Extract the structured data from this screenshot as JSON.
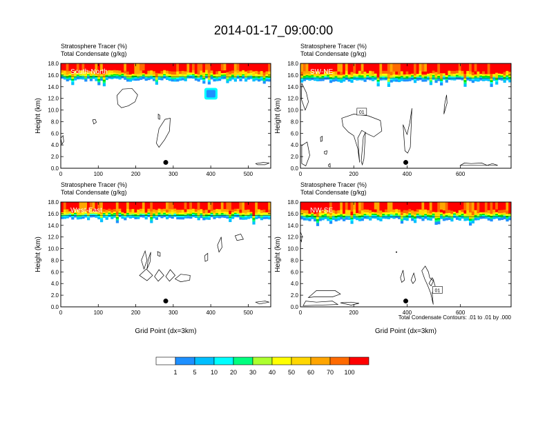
{
  "figure": {
    "title": "2014-01-17_09:00:00",
    "footnote": "Total Condensate Contours: .01 to .01 by .000"
  },
  "colorbar": {
    "labels": [
      "1",
      "5",
      "10",
      "20",
      "30",
      "40",
      "50",
      "60",
      "70",
      "100"
    ],
    "colors": [
      "#ffffff",
      "#1e90ff",
      "#00bfff",
      "#00ffff",
      "#00ff7f",
      "#00e000",
      "#adff2f",
      "#ffff00",
      "#ffd700",
      "#ffa500",
      "#ff6a00",
      "#ff0000"
    ]
  },
  "chart_data": [
    {
      "type": "heatmap",
      "panel_label": "South-North",
      "title_line1": "Stratosphere Tracer   (%)",
      "title_line2": "Total Condensate   (g/kg)",
      "ylabel": "Height (km)",
      "xlabel": "",
      "xlim": [
        0,
        560
      ],
      "ylim": [
        0,
        18
      ],
      "x_ticks": [
        0,
        100,
        200,
        300,
        400,
        500
      ],
      "y_ticks": [
        "0.0",
        "2.0",
        "4.0",
        "6.0",
        "8.0",
        "10.0",
        "12.0",
        "14.0",
        "16.0",
        "18.0"
      ],
      "tracer_base_km": 15.2,
      "marker": {
        "x": 280,
        "y": 1.0
      },
      "contours": [
        [
          [
            150,
            12.5
          ],
          [
            165,
            13.6
          ],
          [
            190,
            13.7
          ],
          [
            205,
            12.6
          ],
          [
            198,
            11.4
          ],
          [
            180,
            10.7
          ],
          [
            162,
            10.4
          ],
          [
            152,
            11.0
          ]
        ],
        [
          [
            85,
            8.3
          ],
          [
            92,
            8.4
          ],
          [
            95,
            7.9
          ],
          [
            88,
            7.6
          ]
        ],
        [
          [
            260,
            9.3
          ],
          [
            264,
            9.1
          ],
          [
            264,
            8.4
          ],
          [
            260,
            8.5
          ]
        ],
        [
          [
            255,
            4.3
          ],
          [
            262,
            6.8
          ],
          [
            278,
            8.4
          ],
          [
            292,
            8.6
          ],
          [
            290,
            6.4
          ],
          [
            277,
            4.9
          ],
          [
            262,
            3.6
          ]
        ],
        [
          [
            0,
            5.2
          ],
          [
            6,
            5.6
          ],
          [
            8,
            4.6
          ],
          [
            3,
            4.1
          ]
        ],
        [
          [
            520,
            0.8
          ],
          [
            540,
            1.0
          ],
          [
            556,
            0.9
          ],
          [
            545,
            0.6
          ],
          [
            525,
            0.6
          ]
        ]
      ],
      "cloud_patches": [
        {
          "x": [
            383,
            418
          ],
          "y": [
            11.8,
            13.8
          ]
        }
      ]
    },
    {
      "type": "heatmap",
      "panel_label": "SW-NE",
      "title_line1": "Stratosphere Tracer   (%)",
      "title_line2": "Total Condensate   (g/kg)",
      "ylabel": "Height (km)",
      "xlabel": "",
      "xlim": [
        0,
        790
      ],
      "ylim": [
        0,
        18
      ],
      "x_ticks": [
        0,
        200,
        400,
        600
      ],
      "y_ticks": [
        "0.0",
        "2.0",
        "4.0",
        "6.0",
        "8.0",
        "10.0",
        "12.0",
        "14.0",
        "16.0",
        "18.0"
      ],
      "tracer_base_km": 15.0,
      "marker": {
        "x": 395,
        "y": 1.0
      },
      "contours": [
        [
          [
            5,
            14.6
          ],
          [
            22,
            13.0
          ],
          [
            30,
            11.4
          ],
          [
            18,
            10.0
          ],
          [
            4,
            11.8
          ]
        ],
        [
          [
            5,
            3.9
          ],
          [
            25,
            4.5
          ],
          [
            35,
            2.2
          ],
          [
            20,
            0.4
          ],
          [
            5,
            0.8
          ]
        ],
        [
          [
            75,
            5.3
          ],
          [
            82,
            5.5
          ],
          [
            82,
            4.7
          ],
          [
            76,
            4.6
          ]
        ],
        [
          [
            90,
            2.9
          ],
          [
            100,
            3.0
          ],
          [
            98,
            2.4
          ],
          [
            90,
            2.5
          ]
        ],
        [
          [
            155,
            8.6
          ],
          [
            200,
            9.3
          ],
          [
            255,
            9.0
          ],
          [
            300,
            8.2
          ],
          [
            305,
            6.4
          ],
          [
            275,
            5.4
          ],
          [
            255,
            5.8
          ],
          [
            230,
            6.5
          ],
          [
            215,
            5.2
          ],
          [
            222,
            1.0
          ],
          [
            215,
            3.4
          ],
          [
            200,
            5.6
          ],
          [
            180,
            6.2
          ],
          [
            160,
            7.2
          ]
        ],
        [
          [
            232,
            0.6
          ],
          [
            238,
            1.6
          ],
          [
            244,
            6.2
          ],
          [
            236,
            5.4
          ],
          [
            228,
            1.2
          ]
        ],
        [
          [
            385,
            7.5
          ],
          [
            392,
            3.0
          ],
          [
            402,
            2.6
          ],
          [
            412,
            3.6
          ],
          [
            418,
            10.3
          ],
          [
            410,
            7.8
          ],
          [
            400,
            5.8
          ]
        ],
        [
          [
            538,
            9.3
          ],
          [
            550,
            11.2
          ],
          [
            548,
            12.6
          ],
          [
            540,
            10.8
          ]
        ],
        [
          [
            105,
            0.6
          ],
          [
            111,
            0.8
          ],
          [
            112,
            0.2
          ],
          [
            106,
            0.3
          ]
        ],
        [
          [
            600,
            0.5
          ],
          [
            615,
            0.9
          ],
          [
            640,
            0.8
          ],
          [
            680,
            0.9
          ],
          [
            700,
            0.5
          ],
          [
            720,
            0.8
          ],
          [
            740,
            0.5
          ]
        ]
      ],
      "labelled_contour": {
        "x": 230,
        "y": 9.6,
        "text": "01"
      }
    },
    {
      "type": "heatmap",
      "panel_label": "West-East",
      "title_line1": "Stratosphere Tracer   (%)",
      "title_line2": "Total Condensate   (g/kg)",
      "ylabel": "Height (km)",
      "xlabel": "Grid Point (dx=3km)",
      "xlim": [
        0,
        560
      ],
      "ylim": [
        0,
        18
      ],
      "x_ticks": [
        0,
        100,
        200,
        300,
        400,
        500
      ],
      "y_ticks": [
        "0.0",
        "2.0",
        "4.0",
        "6.0",
        "8.0",
        "10.0",
        "12.0",
        "14.0",
        "16.0",
        "18.0"
      ],
      "tracer_base_km": 15.2,
      "marker": {
        "x": 280,
        "y": 1.0
      },
      "contours": [
        [
          [
            215,
            8.0
          ],
          [
            225,
            9.6
          ],
          [
            230,
            8.0
          ],
          [
            222,
            6.5
          ]
        ],
        [
          [
            230,
            6.5
          ],
          [
            238,
            7.7
          ],
          [
            240,
            9.4
          ],
          [
            233,
            8.1
          ]
        ],
        [
          [
            258,
            9.5
          ],
          [
            265,
            9.3
          ],
          [
            265,
            8.7
          ],
          [
            259,
            8.8
          ]
        ],
        [
          [
            210,
            5.4
          ],
          [
            228,
            6.5
          ],
          [
            245,
            5.4
          ],
          [
            230,
            4.5
          ]
        ],
        [
          [
            250,
            5.2
          ],
          [
            262,
            6.4
          ],
          [
            275,
            5.4
          ],
          [
            260,
            4.4
          ]
        ],
        [
          [
            280,
            5.2
          ],
          [
            292,
            6.4
          ],
          [
            305,
            5.4
          ],
          [
            290,
            4.4
          ]
        ],
        [
          [
            305,
            4.8
          ],
          [
            320,
            5.6
          ],
          [
            345,
            5.4
          ],
          [
            344,
            4.6
          ],
          [
            320,
            4.3
          ]
        ],
        [
          [
            384,
            8.8
          ],
          [
            392,
            9.2
          ],
          [
            392,
            8.0
          ],
          [
            385,
            7.8
          ]
        ],
        [
          [
            418,
            10.6
          ],
          [
            428,
            12.0
          ],
          [
            430,
            10.2
          ],
          [
            422,
            9.4
          ]
        ],
        [
          [
            465,
            12.2
          ],
          [
            480,
            12.5
          ],
          [
            487,
            11.6
          ],
          [
            470,
            11.4
          ]
        ],
        [
          [
            520,
            0.8
          ],
          [
            545,
            1.0
          ],
          [
            556,
            0.8
          ],
          [
            530,
            0.5
          ]
        ]
      ]
    },
    {
      "type": "heatmap",
      "panel_label": "NW-SE",
      "title_line1": "Stratosphere Tracer   (%)",
      "title_line2": "Total Condensate   (g/kg)",
      "ylabel": "Height (km)",
      "xlabel": "Grid Point (dx=3km)",
      "xlim": [
        0,
        790
      ],
      "ylim": [
        0,
        18
      ],
      "x_ticks": [
        0,
        200,
        400,
        600
      ],
      "y_ticks": [
        "0.0",
        "2.0",
        "4.0",
        "6.0",
        "8.0",
        "10.0",
        "12.0",
        "14.0",
        "16.0",
        "18.0"
      ],
      "tracer_base_km": 15.0,
      "marker": {
        "x": 395,
        "y": 1.0
      },
      "contours": [
        [
          [
            0,
            12.9
          ],
          [
            6,
            12.2
          ],
          [
            4,
            11.2
          ],
          [
            0,
            11.6
          ]
        ],
        [
          [
            30,
            1.6
          ],
          [
            60,
            2.8
          ],
          [
            130,
            2.8
          ],
          [
            150,
            2.2
          ],
          [
            120,
            1.7
          ],
          [
            50,
            1.7
          ]
        ],
        [
          [
            10,
            0.2
          ],
          [
            20,
            1.0
          ],
          [
            60,
            0.8
          ],
          [
            120,
            1.0
          ],
          [
            140,
            0.4
          ]
        ],
        [
          [
            150,
            0.7
          ],
          [
            190,
            0.8
          ],
          [
            220,
            0.6
          ],
          [
            190,
            0.3
          ]
        ],
        [
          [
            375,
            5.0
          ],
          [
            385,
            6.3
          ],
          [
            390,
            4.6
          ],
          [
            380,
            4.2
          ]
        ],
        [
          [
            415,
            4.6
          ],
          [
            425,
            5.8
          ],
          [
            432,
            4.6
          ],
          [
            422,
            4.0
          ]
        ],
        [
          [
            455,
            6.2
          ],
          [
            468,
            7.0
          ],
          [
            480,
            6.0
          ],
          [
            485,
            5.0
          ],
          [
            500,
            4.4
          ],
          [
            505,
            3.6
          ],
          [
            494,
            2.4
          ],
          [
            498,
            0.4
          ],
          [
            488,
            2.4
          ],
          [
            478,
            3.6
          ],
          [
            466,
            4.8
          ]
        ],
        [
          [
            482,
            4.0
          ],
          [
            494,
            5.0
          ],
          [
            500,
            4.6
          ],
          [
            490,
            3.6
          ]
        ]
      ],
      "labelled_contour": {
        "x": 514,
        "y": 2.8,
        "text": "01"
      },
      "dots": [
        {
          "x": 360,
          "y": 9.4
        }
      ]
    }
  ]
}
